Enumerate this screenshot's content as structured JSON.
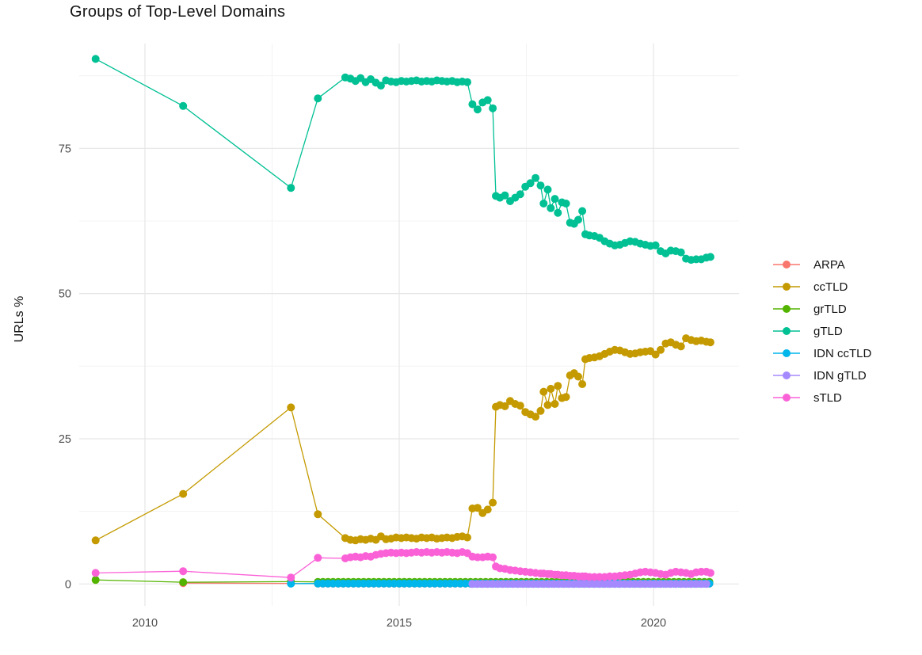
{
  "title": "Groups of Top-Level Domains",
  "axes": {
    "y_label": "URLs %",
    "y_ticks": [
      0,
      25,
      50,
      75
    ],
    "y_minor": [
      12.5,
      37.5,
      62.5,
      87.5
    ],
    "x_ticks": [
      2010,
      2015,
      2020
    ],
    "x_minor": [
      2012.5,
      2017.5
    ]
  },
  "chart_data": {
    "type": "line",
    "title": "Groups of Top-Level Domains",
    "xlabel": "",
    "ylabel": "URLs %",
    "xlim": [
      2008.7,
      2021.7
    ],
    "ylim": [
      -3,
      93
    ],
    "grid": true,
    "legend_position": "right",
    "marker": "point",
    "series": [
      {
        "name": "ARPA",
        "color": "#F8766D",
        "points": [
          [
            2010.75,
            0.15
          ],
          [
            2012.87,
            0.1
          ]
        ],
        "flat": {
          "from": 2013.4,
          "to": 2021.12,
          "step": 0.1,
          "value": 0.05
        }
      },
      {
        "name": "ccTLD",
        "color": "#C49A00",
        "points": [
          [
            2009.03,
            7.5
          ],
          [
            2010.75,
            15.5
          ],
          [
            2012.87,
            30.4
          ],
          [
            2013.4,
            12.0
          ],
          [
            2013.94,
            7.9
          ],
          [
            2014.04,
            7.6
          ],
          [
            2014.14,
            7.5
          ],
          [
            2014.24,
            7.7
          ],
          [
            2014.34,
            7.6
          ],
          [
            2014.44,
            7.8
          ],
          [
            2014.54,
            7.6
          ],
          [
            2014.64,
            8.2
          ],
          [
            2014.74,
            7.7
          ],
          [
            2014.84,
            7.8
          ],
          [
            2014.94,
            8.0
          ],
          [
            2015.04,
            7.9
          ],
          [
            2015.14,
            8.0
          ],
          [
            2015.24,
            7.9
          ],
          [
            2015.34,
            7.8
          ],
          [
            2015.44,
            8.0
          ],
          [
            2015.54,
            7.9
          ],
          [
            2015.64,
            8.0
          ],
          [
            2015.74,
            7.8
          ],
          [
            2015.84,
            7.9
          ],
          [
            2015.94,
            8.0
          ],
          [
            2016.04,
            7.9
          ],
          [
            2016.14,
            8.1
          ],
          [
            2016.24,
            8.2
          ],
          [
            2016.34,
            8.0
          ],
          [
            2016.44,
            13.0
          ],
          [
            2016.54,
            13.1
          ],
          [
            2016.64,
            12.2
          ],
          [
            2016.74,
            12.8
          ],
          [
            2016.84,
            14.0
          ],
          [
            2016.9,
            30.5
          ],
          [
            2016.98,
            30.8
          ],
          [
            2017.08,
            30.6
          ],
          [
            2017.18,
            31.5
          ],
          [
            2017.28,
            31.0
          ],
          [
            2017.38,
            30.7
          ],
          [
            2017.48,
            29.6
          ],
          [
            2017.58,
            29.2
          ],
          [
            2017.68,
            28.8
          ],
          [
            2017.78,
            29.8
          ],
          [
            2017.84,
            33.1
          ],
          [
            2017.92,
            30.8
          ],
          [
            2017.98,
            33.6
          ],
          [
            2018.06,
            31.0
          ],
          [
            2018.12,
            34.1
          ],
          [
            2018.2,
            32.0
          ],
          [
            2018.28,
            32.2
          ],
          [
            2018.36,
            35.9
          ],
          [
            2018.44,
            36.3
          ],
          [
            2018.52,
            35.7
          ],
          [
            2018.6,
            34.4
          ],
          [
            2018.66,
            38.7
          ],
          [
            2018.74,
            38.9
          ],
          [
            2018.84,
            39.0
          ],
          [
            2018.94,
            39.2
          ],
          [
            2019.04,
            39.6
          ],
          [
            2019.14,
            40.0
          ],
          [
            2019.24,
            40.3
          ],
          [
            2019.34,
            40.2
          ],
          [
            2019.44,
            39.9
          ],
          [
            2019.54,
            39.6
          ],
          [
            2019.64,
            39.7
          ],
          [
            2019.74,
            39.9
          ],
          [
            2019.84,
            40.0
          ],
          [
            2019.94,
            40.1
          ],
          [
            2020.04,
            39.5
          ],
          [
            2020.14,
            40.3
          ],
          [
            2020.24,
            41.4
          ],
          [
            2020.34,
            41.6
          ],
          [
            2020.44,
            41.2
          ],
          [
            2020.54,
            40.9
          ],
          [
            2020.64,
            42.3
          ],
          [
            2020.74,
            42.0
          ],
          [
            2020.84,
            41.8
          ],
          [
            2020.94,
            41.9
          ],
          [
            2021.04,
            41.7
          ],
          [
            2021.12,
            41.6
          ]
        ]
      },
      {
        "name": "grTLD",
        "color": "#53B400",
        "points": [
          [
            2009.03,
            0.7
          ],
          [
            2010.75,
            0.3
          ],
          [
            2012.87,
            0.4
          ]
        ],
        "flat": {
          "from": 2013.4,
          "to": 2021.12,
          "step": 0.1,
          "value": 0.35
        }
      },
      {
        "name": "gTLD",
        "color": "#00C094",
        "points": [
          [
            2009.03,
            90.4
          ],
          [
            2010.75,
            82.3
          ],
          [
            2012.87,
            68.2
          ],
          [
            2013.4,
            83.6
          ],
          [
            2013.94,
            87.2
          ],
          [
            2014.04,
            87.0
          ],
          [
            2014.14,
            86.6
          ],
          [
            2014.24,
            87.1
          ],
          [
            2014.34,
            86.4
          ],
          [
            2014.44,
            86.9
          ],
          [
            2014.54,
            86.3
          ],
          [
            2014.64,
            85.8
          ],
          [
            2014.74,
            86.7
          ],
          [
            2014.84,
            86.5
          ],
          [
            2014.94,
            86.4
          ],
          [
            2015.04,
            86.6
          ],
          [
            2015.14,
            86.5
          ],
          [
            2015.24,
            86.6
          ],
          [
            2015.34,
            86.7
          ],
          [
            2015.44,
            86.5
          ],
          [
            2015.54,
            86.6
          ],
          [
            2015.64,
            86.5
          ],
          [
            2015.74,
            86.7
          ],
          [
            2015.84,
            86.6
          ],
          [
            2015.94,
            86.5
          ],
          [
            2016.04,
            86.6
          ],
          [
            2016.14,
            86.4
          ],
          [
            2016.24,
            86.5
          ],
          [
            2016.34,
            86.4
          ],
          [
            2016.44,
            82.6
          ],
          [
            2016.54,
            81.7
          ],
          [
            2016.64,
            82.9
          ],
          [
            2016.74,
            83.3
          ],
          [
            2016.84,
            81.9
          ],
          [
            2016.9,
            66.8
          ],
          [
            2016.98,
            66.5
          ],
          [
            2017.08,
            66.9
          ],
          [
            2017.18,
            65.9
          ],
          [
            2017.28,
            66.5
          ],
          [
            2017.38,
            67.1
          ],
          [
            2017.48,
            68.4
          ],
          [
            2017.58,
            69.0
          ],
          [
            2017.68,
            69.9
          ],
          [
            2017.78,
            68.6
          ],
          [
            2017.84,
            65.5
          ],
          [
            2017.92,
            67.9
          ],
          [
            2017.98,
            64.7
          ],
          [
            2018.06,
            66.3
          ],
          [
            2018.12,
            63.9
          ],
          [
            2018.2,
            65.7
          ],
          [
            2018.28,
            65.5
          ],
          [
            2018.36,
            62.2
          ],
          [
            2018.44,
            62.0
          ],
          [
            2018.52,
            62.7
          ],
          [
            2018.6,
            64.2
          ],
          [
            2018.66,
            60.2
          ],
          [
            2018.74,
            60.0
          ],
          [
            2018.84,
            59.9
          ],
          [
            2018.94,
            59.6
          ],
          [
            2019.04,
            59.0
          ],
          [
            2019.14,
            58.6
          ],
          [
            2019.24,
            58.3
          ],
          [
            2019.34,
            58.4
          ],
          [
            2019.44,
            58.7
          ],
          [
            2019.54,
            59.0
          ],
          [
            2019.64,
            58.9
          ],
          [
            2019.74,
            58.6
          ],
          [
            2019.84,
            58.4
          ],
          [
            2019.94,
            58.2
          ],
          [
            2020.04,
            58.3
          ],
          [
            2020.14,
            57.3
          ],
          [
            2020.24,
            56.9
          ],
          [
            2020.34,
            57.4
          ],
          [
            2020.44,
            57.3
          ],
          [
            2020.54,
            57.1
          ],
          [
            2020.64,
            56.0
          ],
          [
            2020.74,
            55.8
          ],
          [
            2020.84,
            55.9
          ],
          [
            2020.94,
            55.9
          ],
          [
            2021.04,
            56.2
          ],
          [
            2021.12,
            56.3
          ]
        ]
      },
      {
        "name": "IDN ccTLD",
        "color": "#00B6EB",
        "points": [
          [
            2012.87,
            0.05
          ]
        ],
        "flat": {
          "from": 2013.4,
          "to": 2021.12,
          "step": 0.1,
          "value": 0.08
        }
      },
      {
        "name": "IDN gTLD",
        "color": "#A58AFF",
        "points": [],
        "flat": {
          "from": 2016.44,
          "to": 2021.12,
          "step": 0.1,
          "value": 0.02
        }
      },
      {
        "name": "sTLD",
        "color": "#FB61D7",
        "points": [
          [
            2009.03,
            1.9
          ],
          [
            2010.75,
            2.2
          ],
          [
            2012.87,
            1.1
          ],
          [
            2013.4,
            4.5
          ],
          [
            2013.94,
            4.4
          ],
          [
            2014.04,
            4.6
          ],
          [
            2014.14,
            4.7
          ],
          [
            2014.24,
            4.6
          ],
          [
            2014.34,
            4.8
          ],
          [
            2014.44,
            4.7
          ],
          [
            2014.54,
            5.0
          ],
          [
            2014.64,
            5.2
          ],
          [
            2014.74,
            5.3
          ],
          [
            2014.84,
            5.4
          ],
          [
            2014.94,
            5.3
          ],
          [
            2015.04,
            5.4
          ],
          [
            2015.14,
            5.3
          ],
          [
            2015.24,
            5.4
          ],
          [
            2015.34,
            5.5
          ],
          [
            2015.44,
            5.4
          ],
          [
            2015.54,
            5.5
          ],
          [
            2015.64,
            5.4
          ],
          [
            2015.74,
            5.5
          ],
          [
            2015.84,
            5.4
          ],
          [
            2015.94,
            5.5
          ],
          [
            2016.04,
            5.4
          ],
          [
            2016.14,
            5.3
          ],
          [
            2016.24,
            5.5
          ],
          [
            2016.34,
            5.3
          ],
          [
            2016.44,
            4.7
          ],
          [
            2016.54,
            4.6
          ],
          [
            2016.64,
            4.6
          ],
          [
            2016.74,
            4.7
          ],
          [
            2016.84,
            4.6
          ],
          [
            2016.9,
            3.0
          ],
          [
            2016.98,
            2.7
          ],
          [
            2017.08,
            2.6
          ],
          [
            2017.18,
            2.4
          ],
          [
            2017.28,
            2.3
          ],
          [
            2017.38,
            2.2
          ],
          [
            2017.48,
            2.1
          ],
          [
            2017.58,
            2.0
          ],
          [
            2017.68,
            1.9
          ],
          [
            2017.78,
            1.8
          ],
          [
            2017.84,
            1.8
          ],
          [
            2017.92,
            1.7
          ],
          [
            2017.98,
            1.7
          ],
          [
            2018.06,
            1.6
          ],
          [
            2018.12,
            1.6
          ],
          [
            2018.2,
            1.5
          ],
          [
            2018.28,
            1.5
          ],
          [
            2018.36,
            1.4
          ],
          [
            2018.44,
            1.4
          ],
          [
            2018.52,
            1.3
          ],
          [
            2018.6,
            1.3
          ],
          [
            2018.66,
            1.3
          ],
          [
            2018.74,
            1.2
          ],
          [
            2018.84,
            1.2
          ],
          [
            2018.94,
            1.2
          ],
          [
            2019.04,
            1.2
          ],
          [
            2019.14,
            1.3
          ],
          [
            2019.24,
            1.3
          ],
          [
            2019.34,
            1.4
          ],
          [
            2019.44,
            1.5
          ],
          [
            2019.54,
            1.6
          ],
          [
            2019.64,
            1.8
          ],
          [
            2019.74,
            2.0
          ],
          [
            2019.84,
            2.1
          ],
          [
            2019.94,
            2.0
          ],
          [
            2020.04,
            1.9
          ],
          [
            2020.14,
            1.7
          ],
          [
            2020.24,
            1.6
          ],
          [
            2020.34,
            1.9
          ],
          [
            2020.44,
            2.1
          ],
          [
            2020.54,
            2.0
          ],
          [
            2020.64,
            1.9
          ],
          [
            2020.74,
            1.7
          ],
          [
            2020.84,
            2.0
          ],
          [
            2020.94,
            2.1
          ],
          [
            2021.04,
            2.1
          ],
          [
            2021.12,
            1.9
          ]
        ]
      }
    ]
  }
}
